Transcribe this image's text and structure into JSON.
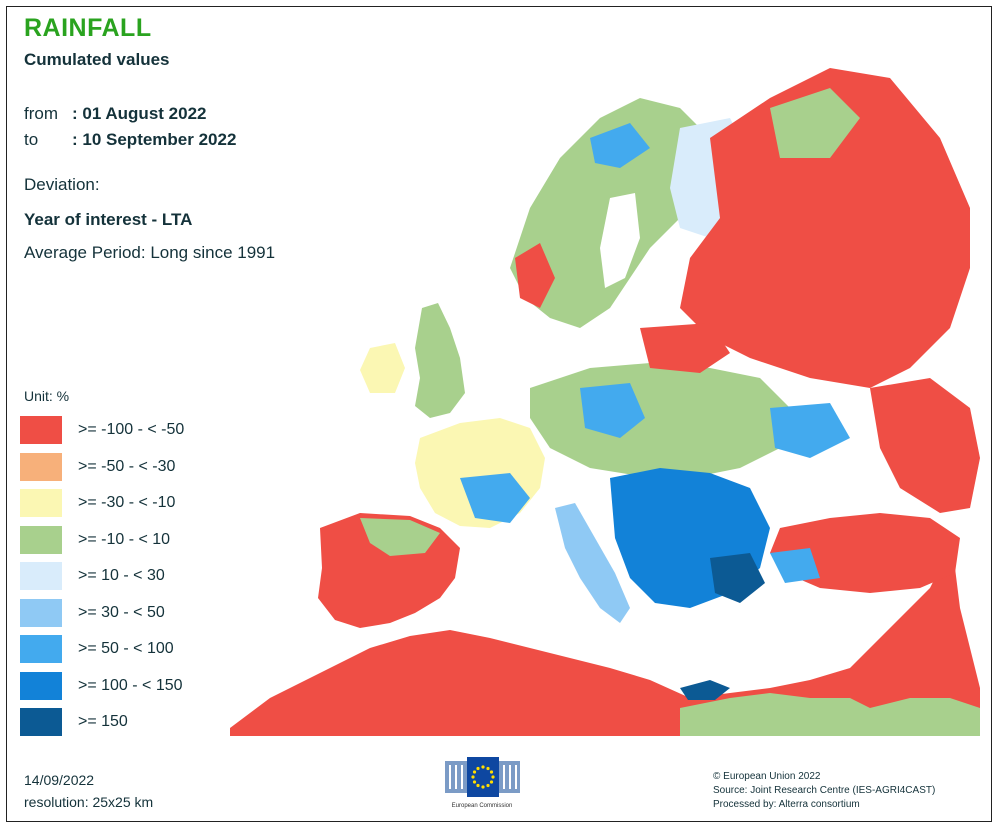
{
  "header": {
    "title": "RAINFALL",
    "subtitle": "Cumulated values",
    "from_label": "from",
    "from_value": ": 01 August 2022",
    "to_label": "to",
    "to_value": ": 10 September 2022",
    "deviation_label": "Deviation:",
    "year_of_interest": "Year of interest - LTA",
    "average_period": "Average Period: Long since 1991"
  },
  "legend": {
    "unit": "Unit:  %",
    "items": [
      {
        "label": ">= -100 - < -50",
        "color": "#ef4e45"
      },
      {
        "label": ">= -50 - < -30",
        "color": "#f7b07a"
      },
      {
        "label": ">= -30 - < -10",
        "color": "#fbf7b3"
      },
      {
        "label": ">= -10 - < 10",
        "color": "#a8d08d"
      },
      {
        "label": ">= 10 - < 30",
        "color": "#d9ecfb"
      },
      {
        "label": ">= 30 - < 50",
        "color": "#8fc9f4"
      },
      {
        "label": ">= 50 - < 100",
        "color": "#43aaee"
      },
      {
        "label": ">= 100 - < 150",
        "color": "#1282d8"
      },
      {
        "label": ">= 150",
        "color": "#0c5a94"
      }
    ]
  },
  "footer": {
    "date": "14/09/2022",
    "resolution": "resolution: 25x25 km",
    "logo_caption": "European Commission",
    "copyright": "© European Union 2022",
    "source": "Source: Joint Research Centre (IES-AGRI4CAST)",
    "processed": "Processed by: Alterra consortium"
  },
  "map": {
    "sea_label": "",
    "background_color": "#ffffff"
  }
}
